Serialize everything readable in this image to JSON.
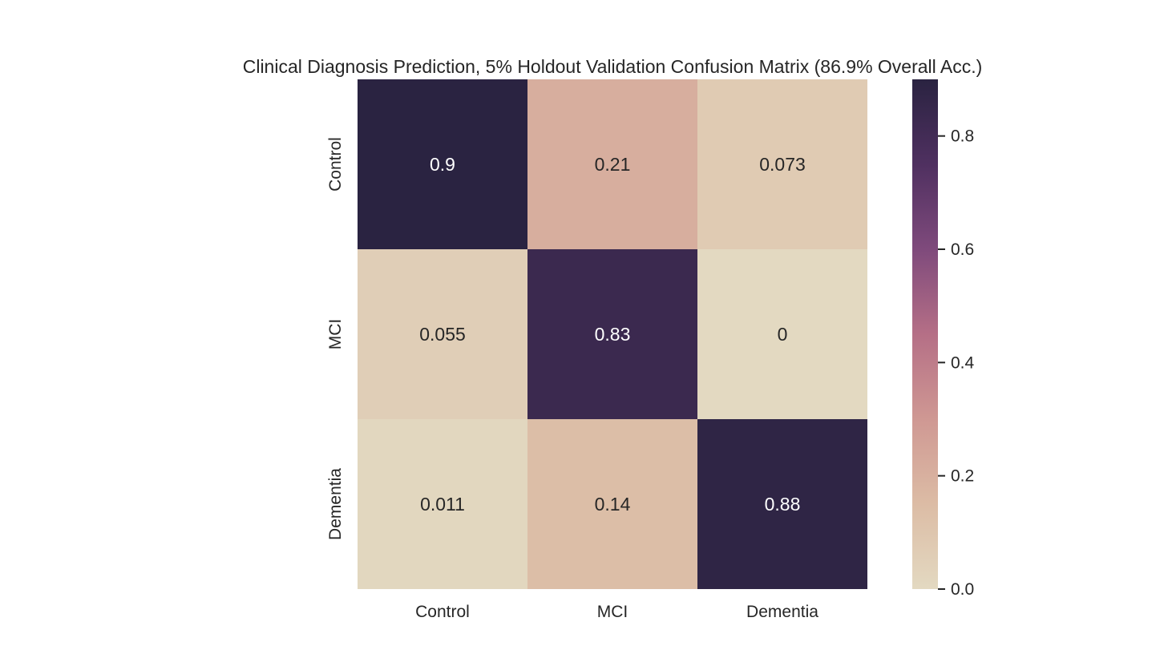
{
  "chart_data": {
    "type": "heatmap",
    "title": "Clinical Diagnosis Prediction, 5% Holdout Validation Confusion Matrix (86.9% Overall Acc.)",
    "xlabel": "",
    "ylabel": "",
    "x_categories": [
      "Control",
      "MCI",
      "Dementia"
    ],
    "y_categories": [
      "Control",
      "MCI",
      "Dementia"
    ],
    "values": [
      [
        0.9,
        0.21,
        0.073
      ],
      [
        0.055,
        0.83,
        0
      ],
      [
        0.011,
        0.14,
        0.88
      ]
    ],
    "cell_labels": [
      [
        "0.9",
        "0.21",
        "0.073"
      ],
      [
        "0.055",
        "0.83",
        "0"
      ],
      [
        "0.011",
        "0.14",
        "0.88"
      ]
    ],
    "colorbar": {
      "range": [
        0,
        0.9
      ],
      "ticks": [
        0.0,
        0.2,
        0.4,
        0.6,
        0.8
      ],
      "tick_labels": [
        "0.0",
        "0.2",
        "0.4",
        "0.6",
        "0.8"
      ],
      "colors_low_to_high": [
        "#e3d9c1",
        "#dcbca5",
        "#cf9893",
        "#b56f86",
        "#7f4a7c",
        "#4f3060",
        "#2a2341"
      ]
    },
    "grid": false,
    "legend": "colorbar-right"
  }
}
